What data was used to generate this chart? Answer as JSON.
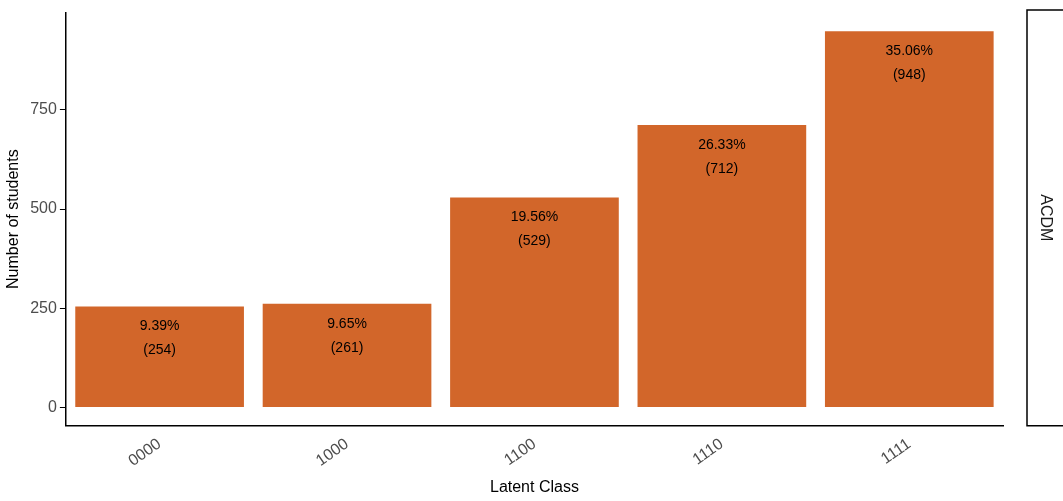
{
  "chart_data": {
    "type": "bar",
    "xlabel": "Latent Class",
    "ylabel": "Number of students",
    "categories": [
      "0000",
      "1000",
      "1100",
      "1110",
      "1111"
    ],
    "values": [
      254,
      261,
      529,
      712,
      948
    ],
    "value_labels": [
      "9.39%\n(254)",
      "9.65%\n(261)",
      "19.56%\n(529)",
      "26.33%\n(712)",
      "35.06%\n(948)"
    ],
    "color": "#d2662a",
    "ylim": [
      -46,
      995
    ],
    "yticks": [
      0,
      250,
      500,
      750
    ],
    "grid": false,
    "legend": false,
    "annotations": [
      "ACDM"
    ]
  }
}
